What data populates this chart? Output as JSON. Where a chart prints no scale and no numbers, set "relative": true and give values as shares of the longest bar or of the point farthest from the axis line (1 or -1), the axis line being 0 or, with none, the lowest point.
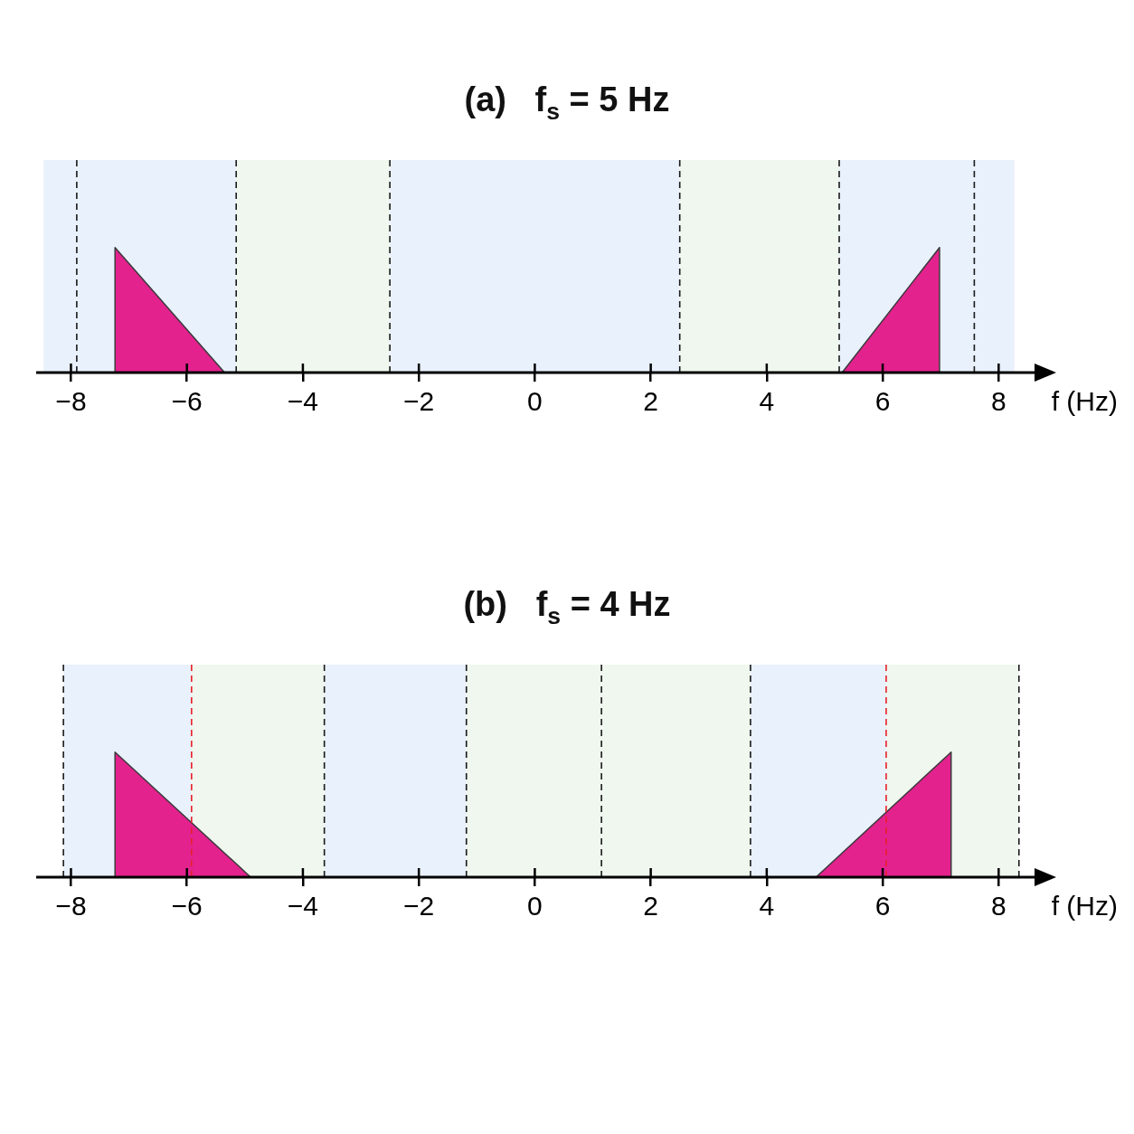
{
  "chart_data": [
    {
      "type": "area",
      "title": "(a)   f$_{s}$ = 5 Hz",
      "xlabel": "f (Hz)",
      "relative": true,
      "marker": "none",
      "tick_labels": "x",
      "xlim": [
        -8.6,
        8.65
      ],
      "xticks": [
        {
          "value": -8,
          "label": "−8"
        },
        {
          "value": -6,
          "label": "−6"
        },
        {
          "value": -4,
          "label": "−4"
        },
        {
          "value": -2,
          "label": "−2"
        },
        0,
        2,
        4,
        6,
        8
      ],
      "series": [
        {
          "color": "#e3228e",
          "x": [
            -7.24,
            -7.24,
            -5.35
          ],
          "values": [
            0,
            1,
            0
          ]
        },
        {
          "color": "#e3228e",
          "x": [
            5.3,
            6.98,
            6.98
          ],
          "values": [
            0,
            1,
            0
          ]
        }
      ],
      "bands": [
        {
          "axis": "x",
          "from": -8.47,
          "to": -5.15,
          "color": "#e8f1fc"
        },
        {
          "axis": "x",
          "from": -5.15,
          "to": -2.5,
          "color": "#eff7ee"
        },
        {
          "axis": "x",
          "from": -2.5,
          "to": 2.5,
          "color": "#e8f1fc"
        },
        {
          "axis": "x",
          "from": 2.5,
          "to": 5.25,
          "color": "#eff7ee"
        },
        {
          "axis": "x",
          "from": 5.25,
          "to": 8.27,
          "color": "#e8f1fc"
        }
      ],
      "ref_lines": [
        {
          "axis": "x",
          "value": -7.9,
          "color": "#1a1a1a",
          "line_style": "dashed"
        },
        {
          "axis": "x",
          "value": -5.15,
          "color": "#1a1a1a",
          "line_style": "dashed"
        },
        {
          "axis": "x",
          "value": -2.5,
          "color": "#1a1a1a",
          "line_style": "dashed"
        },
        {
          "axis": "x",
          "value": 2.5,
          "color": "#1a1a1a",
          "line_style": "dashed"
        },
        {
          "axis": "x",
          "value": 5.25,
          "color": "#1a1a1a",
          "line_style": "dashed"
        },
        {
          "axis": "x",
          "value": 7.58,
          "color": "#1a1a1a",
          "line_style": "dashed"
        }
      ]
    },
    {
      "type": "area",
      "title": "(b)   f$_{s}$ = 4 Hz",
      "xlabel": "f (Hz)",
      "relative": true,
      "marker": "none",
      "tick_labels": "x",
      "xlim": [
        -8.6,
        8.65
      ],
      "xticks": [
        {
          "value": -8,
          "label": "−8"
        },
        {
          "value": -6,
          "label": "−6"
        },
        {
          "value": -4,
          "label": "−4"
        },
        {
          "value": -2,
          "label": "−2"
        },
        0,
        2,
        4,
        6,
        8
      ],
      "series": [
        {
          "color": "#e3228e",
          "x": [
            -7.24,
            -7.24,
            -4.9
          ],
          "values": [
            0,
            1,
            0
          ]
        },
        {
          "color": "#e3228e",
          "x": [
            4.85,
            7.18,
            7.18
          ],
          "values": [
            0,
            1,
            0
          ]
        }
      ],
      "bands": [
        {
          "axis": "x",
          "from": -8.13,
          "to": -5.92,
          "color": "#e8f1fc"
        },
        {
          "axis": "x",
          "from": -5.92,
          "to": -3.63,
          "color": "#eff7ee"
        },
        {
          "axis": "x",
          "from": -3.63,
          "to": -1.18,
          "color": "#e8f1fc"
        },
        {
          "axis": "x",
          "from": -1.18,
          "to": 1.15,
          "color": "#eff7ee"
        },
        {
          "axis": "x",
          "from": 1.15,
          "to": 3.72,
          "color": "#eff7ee"
        },
        {
          "axis": "x",
          "from": 3.72,
          "to": 6.06,
          "color": "#e8f1fc"
        },
        {
          "axis": "x",
          "from": 6.06,
          "to": 8.35,
          "color": "#eff7ee"
        }
      ],
      "ref_lines": [
        {
          "axis": "x",
          "value": -8.13,
          "color": "#1a1a1a",
          "line_style": "dashed"
        },
        {
          "axis": "x",
          "value": -5.92,
          "color": "#e8202a",
          "line_style": "dashed"
        },
        {
          "axis": "x",
          "value": -3.63,
          "color": "#1a1a1a",
          "line_style": "dashed"
        },
        {
          "axis": "x",
          "value": -1.18,
          "color": "#1a1a1a",
          "line_style": "dashed"
        },
        {
          "axis": "x",
          "value": 1.15,
          "color": "#1a1a1a",
          "line_style": "dashed"
        },
        {
          "axis": "x",
          "value": 3.72,
          "color": "#1a1a1a",
          "line_style": "dashed"
        },
        {
          "axis": "x",
          "value": 6.06,
          "color": "#e8202a",
          "line_style": "dashed"
        },
        {
          "axis": "x",
          "value": 8.35,
          "color": "#1a1a1a",
          "line_style": "dashed"
        }
      ]
    }
  ]
}
